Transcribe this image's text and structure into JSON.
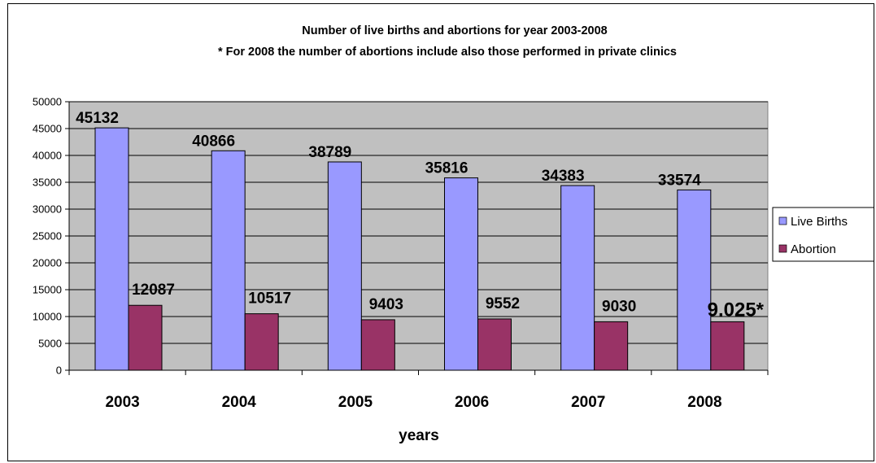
{
  "chart_data": {
    "type": "bar",
    "title": "Number of live births and abortions for year 2003-2008",
    "subtitle": "* For 2008 the number of abortions include also those performed in private clinics",
    "xlabel": "years",
    "ylabel": "",
    "categories": [
      "2003",
      "2004",
      "2005",
      "2006",
      "2007",
      "2008"
    ],
    "ylim": [
      0,
      50000
    ],
    "yticks": [
      "0",
      "5000",
      "10000",
      "15000",
      "20000",
      "25000",
      "30000",
      "35000",
      "40000",
      "45000",
      "50000"
    ],
    "grid": true,
    "legend_position": "right",
    "series": [
      {
        "name": "Live Births",
        "color": "#9999FF",
        "values": [
          45132,
          40866,
          38789,
          35816,
          34383,
          33574
        ],
        "labels": [
          "45132",
          "40866",
          "38789",
          "35816",
          "34383",
          "33574"
        ]
      },
      {
        "name": "Abortion",
        "color": "#993366",
        "values": [
          12087,
          10517,
          9403,
          9552,
          9030,
          9025
        ],
        "labels": [
          "12087",
          "10517",
          "9403",
          "9552",
          "9030",
          "9.025*"
        ]
      }
    ],
    "plot_background": "#C0C0C0"
  }
}
